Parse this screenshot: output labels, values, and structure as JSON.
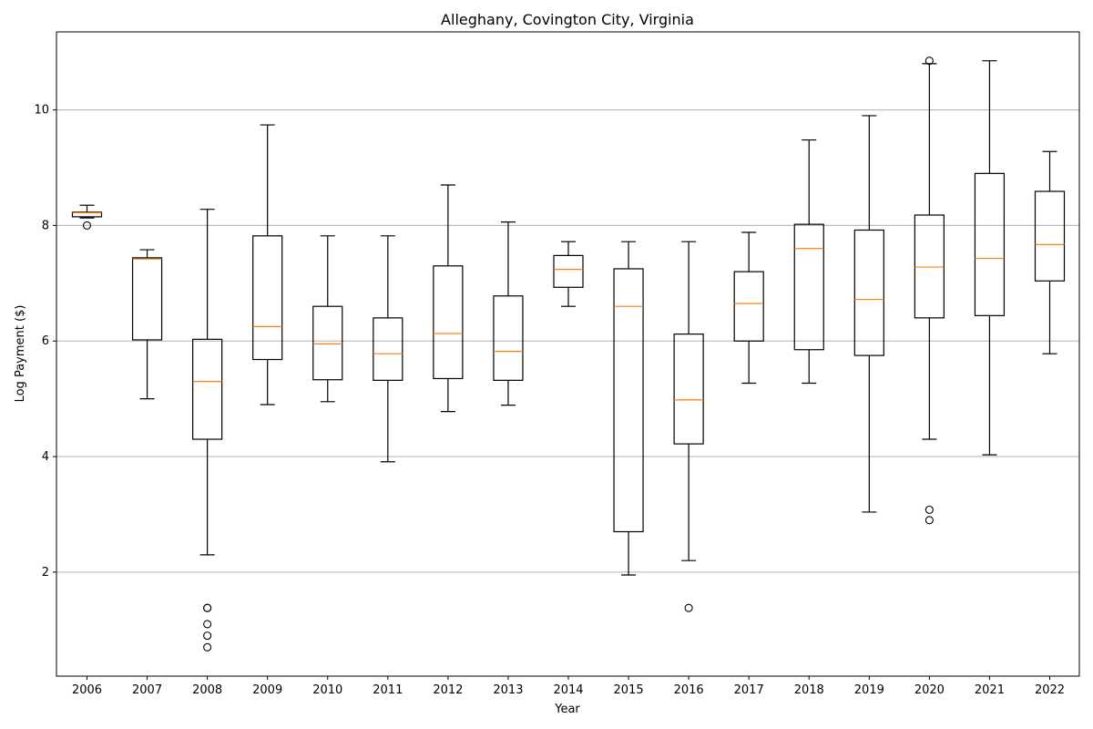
{
  "chart_data": {
    "type": "box",
    "title": "Alleghany, Covington City, Virginia",
    "xlabel": "Year",
    "ylabel": "Log Payment ($)",
    "ylim": [
      0.2,
      11.35
    ],
    "yticks": [
      2,
      4,
      6,
      8,
      10
    ],
    "grid": "y",
    "colors": {
      "box": "#000000",
      "median": "#ff7f0e",
      "grid": "#b0b0b0"
    },
    "categories": [
      "2006",
      "2007",
      "2008",
      "2009",
      "2010",
      "2011",
      "2012",
      "2013",
      "2014",
      "2015",
      "2016",
      "2017",
      "2018",
      "2019",
      "2020",
      "2021",
      "2022"
    ],
    "boxes": [
      {
        "whislo": 8.13,
        "q1": 8.15,
        "med": 8.22,
        "q3": 8.23,
        "whishi": 8.35,
        "fliers": [
          8.0
        ]
      },
      {
        "whislo": 5.0,
        "q1": 6.02,
        "med": 7.42,
        "q3": 7.44,
        "whishi": 7.58,
        "fliers": []
      },
      {
        "whislo": 2.3,
        "q1": 4.3,
        "med": 5.3,
        "q3": 6.03,
        "whishi": 8.28,
        "fliers": [
          1.38,
          1.38,
          1.1,
          0.9,
          0.7
        ]
      },
      {
        "whislo": 4.9,
        "q1": 5.68,
        "med": 6.25,
        "q3": 7.82,
        "whishi": 9.74,
        "fliers": []
      },
      {
        "whislo": 4.95,
        "q1": 5.33,
        "med": 5.95,
        "q3": 6.6,
        "whishi": 7.82,
        "fliers": []
      },
      {
        "whislo": 3.91,
        "q1": 5.32,
        "med": 5.78,
        "q3": 6.4,
        "whishi": 7.82,
        "fliers": []
      },
      {
        "whislo": 4.78,
        "q1": 5.35,
        "med": 6.13,
        "q3": 7.3,
        "whishi": 8.7,
        "fliers": []
      },
      {
        "whislo": 4.89,
        "q1": 5.32,
        "med": 5.82,
        "q3": 6.78,
        "whishi": 8.06,
        "fliers": []
      },
      {
        "whislo": 6.6,
        "q1": 6.93,
        "med": 7.24,
        "q3": 7.48,
        "whishi": 7.72,
        "fliers": []
      },
      {
        "whislo": 1.95,
        "q1": 2.7,
        "med": 6.6,
        "q3": 7.25,
        "whishi": 7.72,
        "fliers": []
      },
      {
        "whislo": 2.2,
        "q1": 4.22,
        "med": 4.98,
        "q3": 6.12,
        "whishi": 7.72,
        "fliers": [
          1.38
        ]
      },
      {
        "whislo": 5.27,
        "q1": 6.0,
        "med": 6.65,
        "q3": 7.2,
        "whishi": 7.88,
        "fliers": []
      },
      {
        "whislo": 5.27,
        "q1": 5.85,
        "med": 7.6,
        "q3": 8.02,
        "whishi": 9.48,
        "fliers": []
      },
      {
        "whislo": 3.04,
        "q1": 5.75,
        "med": 6.72,
        "q3": 7.92,
        "whishi": 9.9,
        "fliers": []
      },
      {
        "whislo": 4.3,
        "q1": 6.4,
        "med": 7.28,
        "q3": 8.18,
        "whishi": 10.8,
        "fliers": [
          10.85,
          3.08,
          2.9
        ]
      },
      {
        "whislo": 4.03,
        "q1": 6.44,
        "med": 7.43,
        "q3": 8.9,
        "whishi": 10.85,
        "fliers": []
      },
      {
        "whislo": 5.78,
        "q1": 7.04,
        "med": 7.67,
        "q3": 8.59,
        "whishi": 9.28,
        "fliers": []
      }
    ]
  }
}
